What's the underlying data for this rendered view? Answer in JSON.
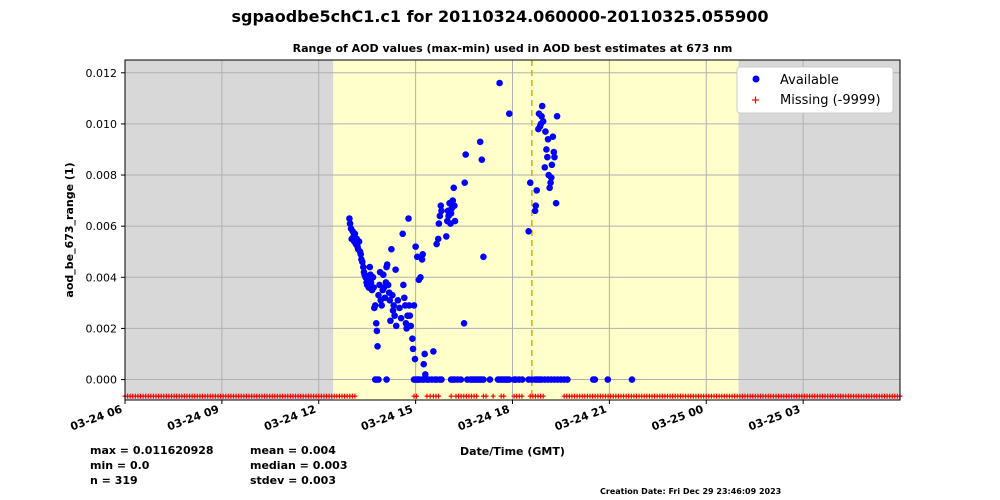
{
  "title": "sgpaodbe5chC1.c1 for 20110324.060000-20110325.055900",
  "subtitle": "Range of AOD values (max-min) used in AOD best estimates at 673 nm",
  "stats": {
    "max": "max = 0.011620928",
    "min": "min = 0.0",
    "n": "n = 319",
    "mean": "mean = 0.004",
    "median": "median = 0.003",
    "stdev": "stdev = 0.003"
  },
  "creation_date": "Creation Date: Fri Dec 29 23:46:09 2023",
  "colors": {
    "available": "#0000ff",
    "missing": "#ff0000",
    "daylight": "#ffffcc",
    "night": "#d8d8d8",
    "solar_noon": "#c8b400"
  },
  "chart_data": {
    "type": "scatter",
    "xlabel": "Date/Time (GMT)",
    "ylabel": "aod_be_673_range (1)",
    "x_range_hours": [
      6,
      30
    ],
    "ylim": [
      -0.0008,
      0.0125
    ],
    "y_ticks": [
      0.0,
      0.002,
      0.004,
      0.006,
      0.008,
      0.01,
      0.012
    ],
    "y_tick_labels": [
      "0.000",
      "0.002",
      "0.004",
      "0.006",
      "0.008",
      "0.010",
      "0.012"
    ],
    "x_ticks": [
      {
        "label": "03-24 06",
        "hour": 6
      },
      {
        "label": "03-24 09",
        "hour": 9
      },
      {
        "label": "03-24 12",
        "hour": 12
      },
      {
        "label": "03-24 15",
        "hour": 15
      },
      {
        "label": "03-24 18",
        "hour": 18
      },
      {
        "label": "03-24 21",
        "hour": 21
      },
      {
        "label": "03-25 00",
        "hour": 24
      },
      {
        "label": "03-25 03",
        "hour": 27
      }
    ],
    "grid": true,
    "legend_position": "top-right",
    "background_bands": [
      {
        "type": "night",
        "start": 6,
        "end": 12.45
      },
      {
        "type": "day",
        "start": 12.45,
        "end": 25.0
      },
      {
        "type": "night",
        "start": 25.0,
        "end": 30
      }
    ],
    "solar_noon_hour": 18.6,
    "series": [
      {
        "name": "Available",
        "points": [
          [
            12.95,
            0.0063
          ],
          [
            12.97,
            0.0061
          ],
          [
            13.0,
            0.0059
          ],
          [
            13.02,
            0.0055
          ],
          [
            13.05,
            0.0058
          ],
          [
            13.08,
            0.0056
          ],
          [
            13.1,
            0.0054
          ],
          [
            13.12,
            0.0057
          ],
          [
            13.15,
            0.0053
          ],
          [
            13.18,
            0.0055
          ],
          [
            13.2,
            0.0052
          ],
          [
            13.22,
            0.0051
          ],
          [
            13.25,
            0.0054
          ],
          [
            13.28,
            0.005
          ],
          [
            13.3,
            0.0049
          ],
          [
            13.32,
            0.0047
          ],
          [
            13.35,
            0.0046
          ],
          [
            13.38,
            0.0044
          ],
          [
            13.4,
            0.0042
          ],
          [
            13.42,
            0.0041
          ],
          [
            13.45,
            0.004
          ],
          [
            13.48,
            0.0038
          ],
          [
            13.5,
            0.0037
          ],
          [
            13.52,
            0.0039
          ],
          [
            13.55,
            0.0036
          ],
          [
            13.58,
            0.0044
          ],
          [
            13.6,
            0.0041
          ],
          [
            13.62,
            0.0038
          ],
          [
            13.65,
            0.0035
          ],
          [
            13.68,
            0.004
          ],
          [
            13.7,
            0.0036
          ],
          [
            13.72,
            0.0028
          ],
          [
            13.75,
            0.0029
          ],
          [
            13.78,
            0.0022
          ],
          [
            13.8,
            0.0019
          ],
          [
            13.82,
            0.0013
          ],
          [
            13.85,
            0.0033
          ],
          [
            13.88,
            0.0037
          ],
          [
            13.9,
            0.0042
          ],
          [
            13.92,
            0.0031
          ],
          [
            13.95,
            0.0029
          ],
          [
            13.98,
            0.0035
          ],
          [
            14.0,
            0.0041
          ],
          [
            14.02,
            0.0036
          ],
          [
            14.05,
            0.0032
          ],
          [
            14.08,
            0.0038
          ],
          [
            14.1,
            0.0044
          ],
          [
            14.12,
            0.0045
          ],
          [
            14.15,
            0.0037
          ],
          [
            14.18,
            0.0034
          ],
          [
            14.2,
            0.0031
          ],
          [
            14.22,
            0.0023
          ],
          [
            14.25,
            0.0051
          ],
          [
            14.28,
            0.0033
          ],
          [
            14.3,
            0.0027
          ],
          [
            14.32,
            0.0029
          ],
          [
            14.35,
            0.0025
          ],
          [
            14.38,
            0.0043
          ],
          [
            14.4,
            0.0021
          ],
          [
            14.45,
            0.0031
          ],
          [
            14.5,
            0.0028
          ],
          [
            14.55,
            0.0024
          ],
          [
            14.6,
            0.0057
          ],
          [
            14.62,
            0.0037
          ],
          [
            14.65,
            0.0032
          ],
          [
            14.68,
            0.0029
          ],
          [
            14.7,
            0.0022
          ],
          [
            14.72,
            0.002
          ],
          [
            14.75,
            0.0025
          ],
          [
            14.78,
            0.0063
          ],
          [
            14.8,
            0.0029
          ],
          [
            14.82,
            0.0025
          ],
          [
            14.85,
            0.0021
          ],
          [
            14.9,
            0.0016
          ],
          [
            14.92,
            0.0012
          ],
          [
            14.95,
            0.0029
          ],
          [
            14.98,
            0.0008
          ],
          [
            15.0,
            0.0052
          ],
          [
            15.05,
            0.0048
          ],
          [
            15.1,
            0.0039
          ],
          [
            15.15,
            0.004
          ],
          [
            15.2,
            0.0047
          ],
          [
            15.22,
            0.0049
          ],
          [
            15.25,
            0.0006
          ],
          [
            15.28,
            0.001
          ],
          [
            15.3,
            0.0002
          ],
          [
            15.55,
            0.0011
          ],
          [
            15.65,
            0.0053
          ],
          [
            15.7,
            0.0055
          ],
          [
            15.72,
            0.0061
          ],
          [
            15.75,
            0.0064
          ],
          [
            15.78,
            0.0068
          ],
          [
            15.8,
            0.0066
          ],
          [
            15.95,
            0.0056
          ],
          [
            15.98,
            0.0062
          ],
          [
            16.0,
            0.0066
          ],
          [
            16.02,
            0.0064
          ],
          [
            16.05,
            0.0069
          ],
          [
            16.08,
            0.0061
          ],
          [
            16.1,
            0.0065
          ],
          [
            16.12,
            0.0067
          ],
          [
            16.15,
            0.007
          ],
          [
            16.18,
            0.0075
          ],
          [
            16.2,
            0.0068
          ],
          [
            16.22,
            0.0062
          ],
          [
            16.5,
            0.0022
          ],
          [
            16.52,
            0.0077
          ],
          [
            16.55,
            0.0088
          ],
          [
            17.0,
            0.0093
          ],
          [
            17.05,
            0.0086
          ],
          [
            17.1,
            0.0048
          ],
          [
            17.6,
            0.0116
          ],
          [
            17.9,
            0.0104
          ],
          [
            18.5,
            0.0058
          ],
          [
            18.55,
            0.0077
          ],
          [
            18.7,
            0.0066
          ],
          [
            18.72,
            0.0068
          ],
          [
            18.75,
            0.0074
          ],
          [
            18.8,
            0.0098
          ],
          [
            18.82,
            0.0104
          ],
          [
            18.85,
            0.0099
          ],
          [
            18.88,
            0.01
          ],
          [
            18.9,
            0.0103
          ],
          [
            18.92,
            0.0107
          ],
          [
            18.95,
            0.0101
          ],
          [
            19.0,
            0.0083
          ],
          [
            19.02,
            0.0097
          ],
          [
            19.05,
            0.009
          ],
          [
            19.08,
            0.0087
          ],
          [
            19.1,
            0.0094
          ],
          [
            19.12,
            0.008
          ],
          [
            19.15,
            0.0075
          ],
          [
            19.18,
            0.0077
          ],
          [
            19.2,
            0.0079
          ],
          [
            19.22,
            0.0084
          ],
          [
            19.25,
            0.0095
          ],
          [
            19.28,
            0.0089
          ],
          [
            19.3,
            0.0087
          ],
          [
            19.35,
            0.0069
          ],
          [
            19.38,
            0.0103
          ],
          [
            14.95,
            0.0
          ],
          [
            15.0,
            0.0
          ],
          [
            15.05,
            0.0
          ],
          [
            15.08,
            0.0
          ],
          [
            15.12,
            0.0
          ],
          [
            15.2,
            0.0
          ],
          [
            15.25,
            0.0
          ],
          [
            15.35,
            0.0
          ],
          [
            15.4,
            0.0
          ],
          [
            15.5,
            0.0
          ],
          [
            15.6,
            0.0
          ],
          [
            15.65,
            0.0
          ],
          [
            15.75,
            0.0
          ],
          [
            15.8,
            0.0
          ],
          [
            16.1,
            0.0
          ],
          [
            16.15,
            0.0
          ],
          [
            16.2,
            0.0
          ],
          [
            16.3,
            0.0
          ],
          [
            16.4,
            0.0
          ],
          [
            16.6,
            0.0
          ],
          [
            16.7,
            0.0
          ],
          [
            16.75,
            0.0
          ],
          [
            16.8,
            0.0
          ],
          [
            16.85,
            0.0
          ],
          [
            16.9,
            0.0
          ],
          [
            16.95,
            0.0
          ],
          [
            17.0,
            0.0
          ],
          [
            17.05,
            0.0
          ],
          [
            17.1,
            0.0
          ],
          [
            17.3,
            0.0
          ],
          [
            17.55,
            0.0
          ],
          [
            17.6,
            0.0
          ],
          [
            17.65,
            0.0
          ],
          [
            17.7,
            0.0
          ],
          [
            17.75,
            0.0
          ],
          [
            17.8,
            0.0
          ],
          [
            17.85,
            0.0
          ],
          [
            17.9,
            0.0
          ],
          [
            18.05,
            0.0
          ],
          [
            18.1,
            0.0
          ],
          [
            18.2,
            0.0
          ],
          [
            18.3,
            0.0
          ],
          [
            18.5,
            0.0
          ],
          [
            18.6,
            0.0
          ],
          [
            18.7,
            0.0
          ],
          [
            18.75,
            0.0
          ],
          [
            18.8,
            0.0
          ],
          [
            18.85,
            0.0
          ],
          [
            18.9,
            0.0
          ],
          [
            19.0,
            0.0
          ],
          [
            19.1,
            0.0
          ],
          [
            19.2,
            0.0
          ],
          [
            19.3,
            0.0
          ],
          [
            19.4,
            0.0
          ],
          [
            19.5,
            0.0
          ],
          [
            19.6,
            0.0
          ],
          [
            19.7,
            0.0
          ],
          [
            20.5,
            0.0
          ],
          [
            20.55,
            0.0
          ],
          [
            20.95,
            0.0
          ],
          [
            21.7,
            0.0
          ],
          [
            13.75,
            0.0
          ],
          [
            13.8,
            0.0
          ],
          [
            13.85,
            0.0
          ],
          [
            14.1,
            0.0
          ]
        ]
      },
      {
        "name": "Missing (-9999)",
        "y_display": -0.00065,
        "segments": [
          [
            6.0,
            13.15
          ],
          [
            14.95,
            15.05
          ],
          [
            15.55,
            15.75
          ],
          [
            16.25,
            16.95
          ],
          [
            17.1,
            17.2
          ],
          [
            17.65,
            17.8
          ],
          [
            18.05,
            18.3
          ],
          [
            18.55,
            18.95
          ],
          [
            19.6,
            30.0
          ]
        ],
        "isolated": [
          15.35,
          15.45,
          16.1,
          17.4
        ]
      }
    ]
  }
}
